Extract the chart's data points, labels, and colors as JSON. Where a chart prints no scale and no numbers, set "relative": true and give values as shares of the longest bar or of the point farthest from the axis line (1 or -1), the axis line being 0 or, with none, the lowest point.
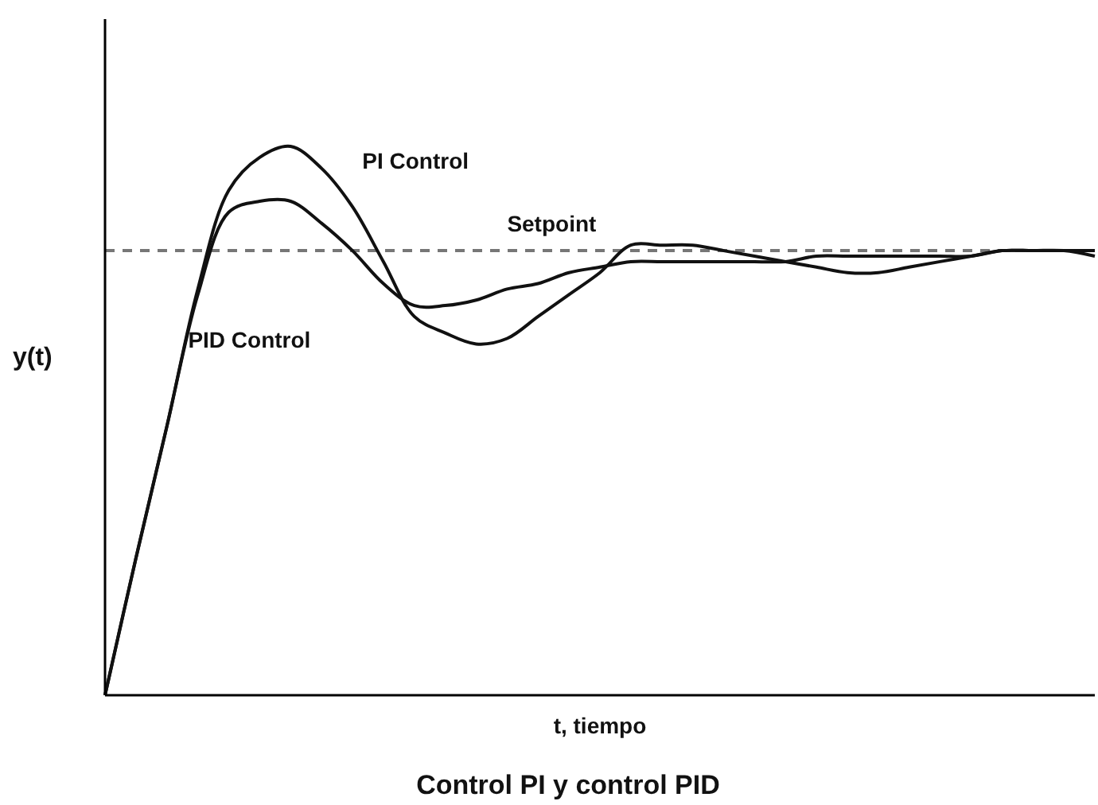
{
  "chart_data": {
    "type": "line",
    "relative": true,
    "title": "Control PI y control PID",
    "xlabel": "t, tiempo",
    "ylabel": "y(t)",
    "line_style": "solid",
    "categories": [
      null,
      null,
      null,
      null,
      null,
      null,
      null,
      null,
      null,
      null,
      null,
      null,
      null,
      null,
      null,
      null,
      null,
      null,
      null,
      null,
      null,
      null,
      null,
      null,
      null,
      null,
      null,
      null,
      null,
      null,
      null,
      null,
      null
    ],
    "series": [
      {
        "name": "PI Control",
        "color": "#111111",
        "values": [
          0,
          0.25,
          0.49,
          0.74,
          0.92,
          0.98,
          1.0,
          0.96,
          0.89,
          0.79,
          0.69,
          0.66,
          0.64,
          0.65,
          0.69,
          0.73,
          0.77,
          0.82,
          0.82,
          0.82,
          0.81,
          0.8,
          0.79,
          0.78,
          0.77,
          0.77,
          0.78,
          0.79,
          0.8,
          0.81,
          0.81,
          0.81,
          0.81
        ]
      },
      {
        "name": "PID Control",
        "color": "#111111",
        "values": [
          0,
          0.25,
          0.49,
          0.73,
          0.88,
          0.9,
          0.9,
          0.86,
          0.81,
          0.75,
          0.71,
          0.71,
          0.72,
          0.74,
          0.75,
          0.77,
          0.78,
          0.79,
          0.79,
          0.79,
          0.79,
          0.79,
          0.79,
          0.8,
          0.8,
          0.8,
          0.8,
          0.8,
          0.8,
          0.81,
          0.81,
          0.81,
          0.8
        ]
      }
    ],
    "ref_lines": [
      {
        "axis": "y",
        "value": 0.81,
        "label": "Setpoint",
        "color": "#777777",
        "line_style": "dashed"
      }
    ]
  }
}
